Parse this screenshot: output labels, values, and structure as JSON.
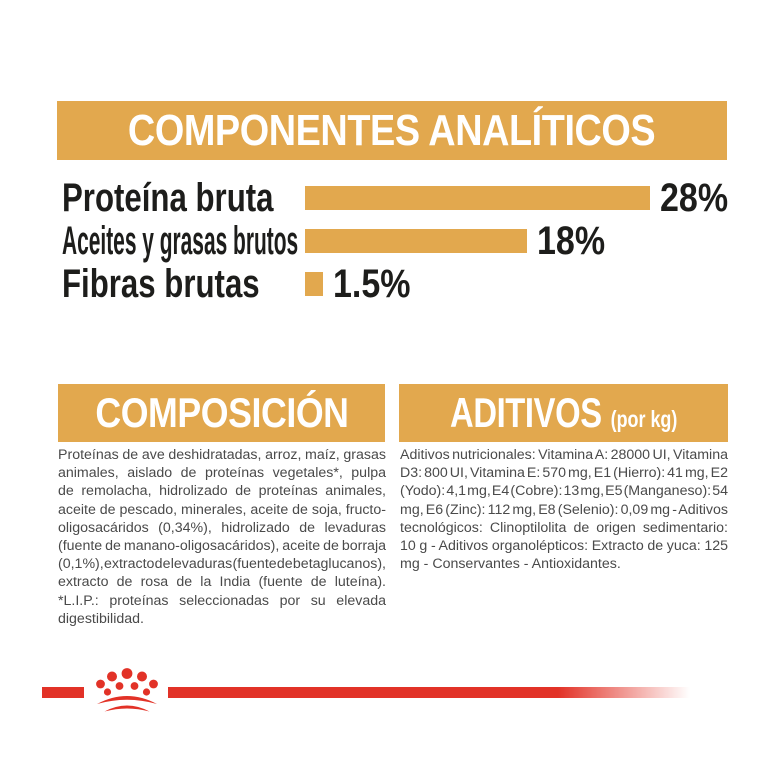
{
  "colors": {
    "gold": "#E2A84E",
    "red": "#E23227",
    "banner_text": "#FFFFFF",
    "label_text": "#1D1D1B",
    "body_text": "#4A4A4A",
    "background": "#FFFFFF"
  },
  "chart_data": {
    "type": "bar",
    "orientation": "horizontal",
    "title": "COMPONENTES ANALÍTICOS",
    "categories": [
      "Proteína bruta",
      "Aceites y grasas brutos",
      "Fibras brutas"
    ],
    "values": [
      28,
      18,
      1.5
    ],
    "value_labels": [
      "28%",
      "18%",
      "1.5%"
    ],
    "unit": "%",
    "scale_max": 28,
    "bar_color": "#E2A84E",
    "legend": false,
    "axes": false,
    "grid": false
  },
  "composition": {
    "title": "COMPOSICIÓN",
    "lines": [
      "Proteínas de ave deshidratadas, arroz, maíz, grasas",
      "animales, aislado de proteínas vegetales*, pulpa",
      "de remolacha, hidrolizado de proteínas animales,",
      "aceite de pescado, minerales, aceite de soja, fructo-",
      "oligosacáridos (0,34%), hidrolizado de levaduras",
      "(fuente de manano-oligosacáridos), aceite de borraja",
      "(0,1%), extracto de levaduras (fuente de betaglucanos),",
      "extracto de rosa de la India (fuente de luteína).",
      "*L.I.P.: proteínas seleccionadas por su elevada",
      "digestibilidad."
    ]
  },
  "additives": {
    "title": "ADITIVOS",
    "title_suffix": "(por kg)",
    "lines": [
      "Aditivos nutricionales: Vitamina A: 28000 UI, Vitamina",
      "D3: 800 UI, Vitamina E: 570 mg, E1 (Hierro): 41 mg, E2",
      "(Yodo): 4,1 mg, E4 (Cobre): 13 mg, E5 (Manganeso): 54",
      "mg, E6 (Zinc): 112 mg, E8 (Selenio): 0,09 mg - Aditivos",
      "tecnológicos: Clinoptilolita de origen sedimentario:",
      "10 g - Aditivos organolépticos: Extracto de yuca: 125",
      "mg - Conservantes - Antioxidantes."
    ]
  },
  "footer": {
    "logo": "royal-canin-crown"
  }
}
